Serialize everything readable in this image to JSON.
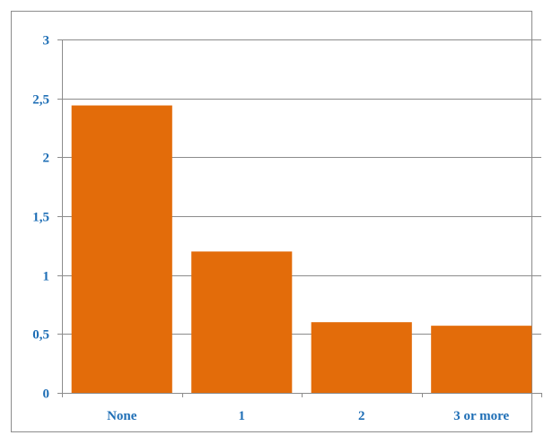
{
  "chart_data": {
    "type": "bar",
    "title": "",
    "xlabel": "",
    "ylabel": "",
    "categories": [
      "None",
      "1",
      "2",
      "3 or more"
    ],
    "values": [
      2.44,
      1.2,
      0.6,
      0.57
    ],
    "ylim": [
      0,
      3
    ],
    "yticks": [
      0,
      0.5,
      1,
      1.5,
      2,
      2.5,
      3
    ],
    "ytick_labels": [
      "0",
      "0,5",
      "1",
      "1,5",
      "2",
      "2,5",
      "3"
    ],
    "grid": true,
    "legend": "none",
    "colors": {
      "bar": "#e36c0a",
      "tick_label": "#1f6fb6",
      "gridline": "#8c8c8c",
      "axis": "#8c8c8c"
    }
  }
}
